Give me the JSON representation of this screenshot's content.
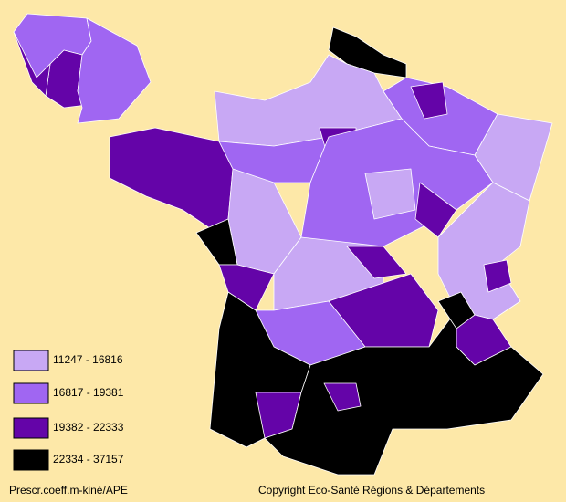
{
  "legend": [
    {
      "label": "11247 - 16816",
      "color": "#c8a8f4"
    },
    {
      "label": "16817 - 19381",
      "color": "#a066f2"
    },
    {
      "label": "19382 - 22333",
      "color": "#6404a8"
    },
    {
      "label": "22334 - 37157",
      "color": "#000000"
    }
  ],
  "footer": {
    "left": "Prescr.coeff.m-kiné/APE",
    "right": "Copyright Eco-Santé Régions & Départements"
  }
}
